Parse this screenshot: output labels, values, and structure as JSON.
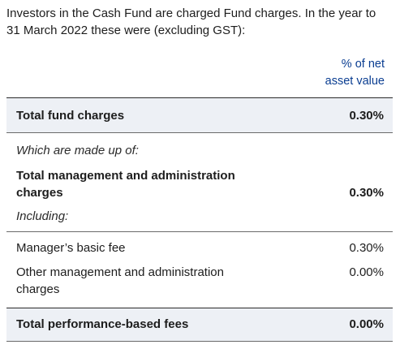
{
  "intro_text": "Investors in the Cash Fund are charged Fund charges. In the year to 31 March 2022 these were (excluding GST):",
  "column_header": {
    "line1": "% of net",
    "line2": "asset value"
  },
  "rows": {
    "total_fund_charges": {
      "label": "Total fund charges",
      "value": "0.30%"
    },
    "made_up_of": {
      "label": "Which are made up of:"
    },
    "total_mgmt_admin": {
      "label_line1": "Total management and administration",
      "label_line2": "charges",
      "value": "0.30%"
    },
    "including": {
      "label": "Including:"
    },
    "managers_fee": {
      "label": "Manager’s basic fee",
      "value": "0.30%"
    },
    "other_mgmt": {
      "label_line1": "Other management and administration",
      "label_line2": "charges",
      "value": "0.00%"
    },
    "total_performance": {
      "label": "Total performance-based fees",
      "value": "0.00%"
    }
  },
  "colors": {
    "header_text": "#0a3d91",
    "total_row_bg": "#edf0f5"
  }
}
